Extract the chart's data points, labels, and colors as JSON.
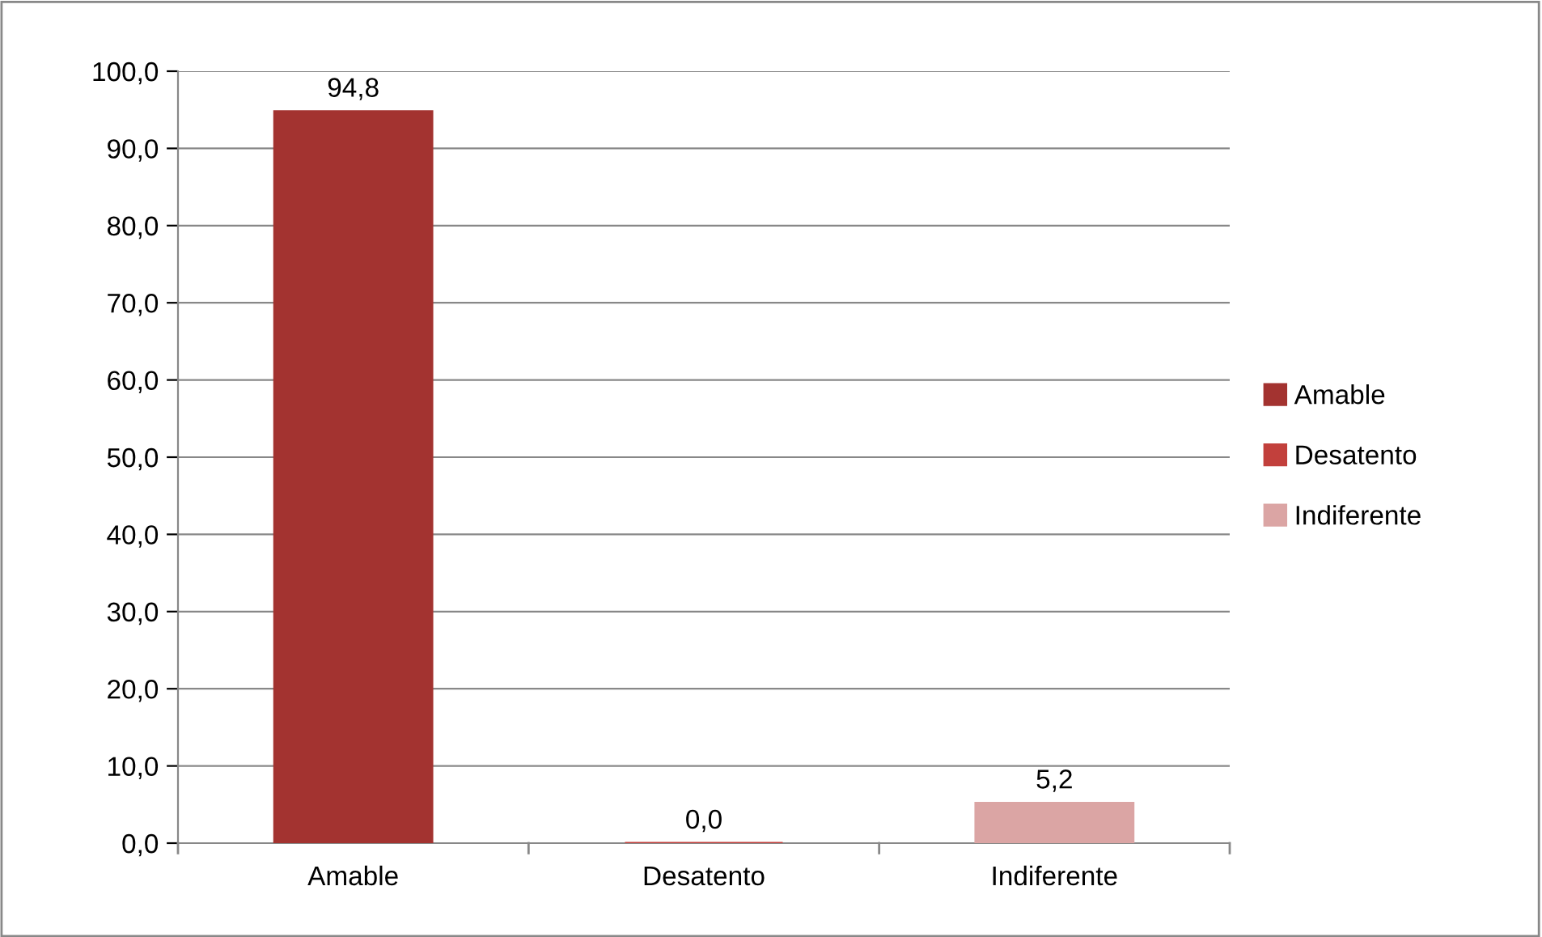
{
  "chart_data": {
    "type": "bar",
    "categories": [
      "Amable",
      "Desatento",
      "Indiferente"
    ],
    "series": [
      {
        "name": "Amable",
        "color": "#a33330",
        "values": [
          94.8,
          null,
          null
        ],
        "value_labels": [
          "94,8",
          null,
          null
        ]
      },
      {
        "name": "Desatento",
        "color": "#c2403c",
        "values": [
          null,
          0.0,
          null
        ],
        "value_labels": [
          null,
          "0,0",
          null
        ]
      },
      {
        "name": "Indiferente",
        "color": "#dba5a4",
        "values": [
          null,
          null,
          5.2
        ],
        "value_labels": [
          null,
          null,
          "5,2"
        ]
      }
    ],
    "ylim": [
      0,
      100
    ],
    "yticks": [
      {
        "value": 0,
        "label": "0,0"
      },
      {
        "value": 10,
        "label": "10,0"
      },
      {
        "value": 20,
        "label": "20,0"
      },
      {
        "value": 30,
        "label": "30,0"
      },
      {
        "value": 40,
        "label": "40,0"
      },
      {
        "value": 50,
        "label": "50,0"
      },
      {
        "value": 60,
        "label": "60,0"
      },
      {
        "value": 70,
        "label": "70,0"
      },
      {
        "value": 80,
        "label": "80,0"
      },
      {
        "value": 90,
        "label": "90,0"
      },
      {
        "value": 100,
        "label": "100,0"
      }
    ],
    "grid": "y",
    "legend": "right"
  }
}
